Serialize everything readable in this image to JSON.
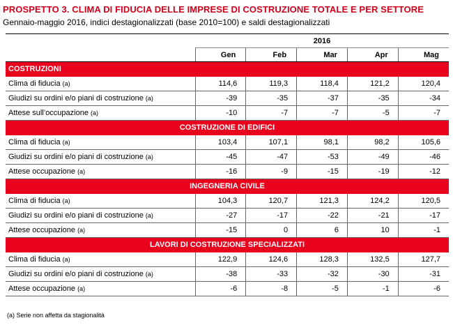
{
  "title": "PROSPETTO 3. CLIMA DI FIDUCIA DELLE IMPRESE DI COSTRUZIONE TOTALE E PER SETTORE",
  "subtitle": "Gennaio-maggio  2016, indici destagionalizzati (base 2010=100) e saldi destagionalizzati",
  "year": "2016",
  "months": [
    "Gen",
    "Feb",
    "Mar",
    "Apr",
    "Mag"
  ],
  "sections": [
    {
      "name": "COSTRUZIONI",
      "rows": [
        {
          "label": "Clima di fiducia",
          "unit": "(a)",
          "values": [
            "114,6",
            "119,3",
            "118,4",
            "121,2",
            "120,4"
          ]
        },
        {
          "label": "Giudizi su ordini e/o piani di costruzione",
          "unit": "(a)",
          "values": [
            "-39",
            "-35",
            "-37",
            "-35",
            "-34"
          ]
        },
        {
          "label": "Attese sull’occupazione",
          "unit": "(a)",
          "values": [
            "-10",
            "-7",
            "-7",
            "-5",
            "-7"
          ]
        }
      ]
    },
    {
      "name": "COSTRUZIONE DI EDIFICI",
      "rows": [
        {
          "label": "Clima di fiducia",
          "unit": "(a)",
          "values": [
            "103,4",
            "107,1",
            "98,1",
            "98,2",
            "105,6"
          ]
        },
        {
          "label": "Giudizi su ordini e/o piani di costruzione",
          "unit": "(a)",
          "values": [
            "-45",
            "-47",
            "-53",
            "-49",
            "-46"
          ]
        },
        {
          "label": "Attese occupazione",
          "unit": "(a)",
          "values": [
            "-16",
            "-9",
            "-15",
            "-19",
            "-12"
          ]
        }
      ]
    },
    {
      "name": "INGEGNERIA CIVILE",
      "rows": [
        {
          "label": "Clima di fiducia",
          "unit": "(a)",
          "values": [
            "104,3",
            "120,7",
            "121,3",
            "124,2",
            "120,5"
          ]
        },
        {
          "label": "Giudizi su ordini e/o piani di costruzione",
          "unit": "(a)",
          "values": [
            "-27",
            "-17",
            "-22",
            "-21",
            "-17"
          ]
        },
        {
          "label": "Attese occupazione",
          "unit": "(a)",
          "values": [
            "-15",
            "0",
            "6",
            "10",
            "-1"
          ]
        }
      ]
    },
    {
      "name": "LAVORI DI COSTRUZIONE SPECIALIZZATI",
      "rows": [
        {
          "label": "Clima di fiducia",
          "unit": "(a)",
          "values": [
            "122,9",
            "124,6",
            "128,3",
            "132,5",
            "127,7"
          ]
        },
        {
          "label": "Giudizi su ordini e/o piani di costruzione",
          "unit": "(a)",
          "values": [
            "-38",
            "-33",
            "-32",
            "-30",
            "-31"
          ]
        },
        {
          "label": "Attese occupazione",
          "unit": "(a)",
          "values": [
            "-6",
            "-8",
            "-5",
            "-1",
            "-6"
          ]
        }
      ]
    }
  ],
  "note": "(a) Serie non affetta da stagionalità",
  "colors": {
    "title": "#d0021b",
    "section_bg": "#e8001c"
  }
}
